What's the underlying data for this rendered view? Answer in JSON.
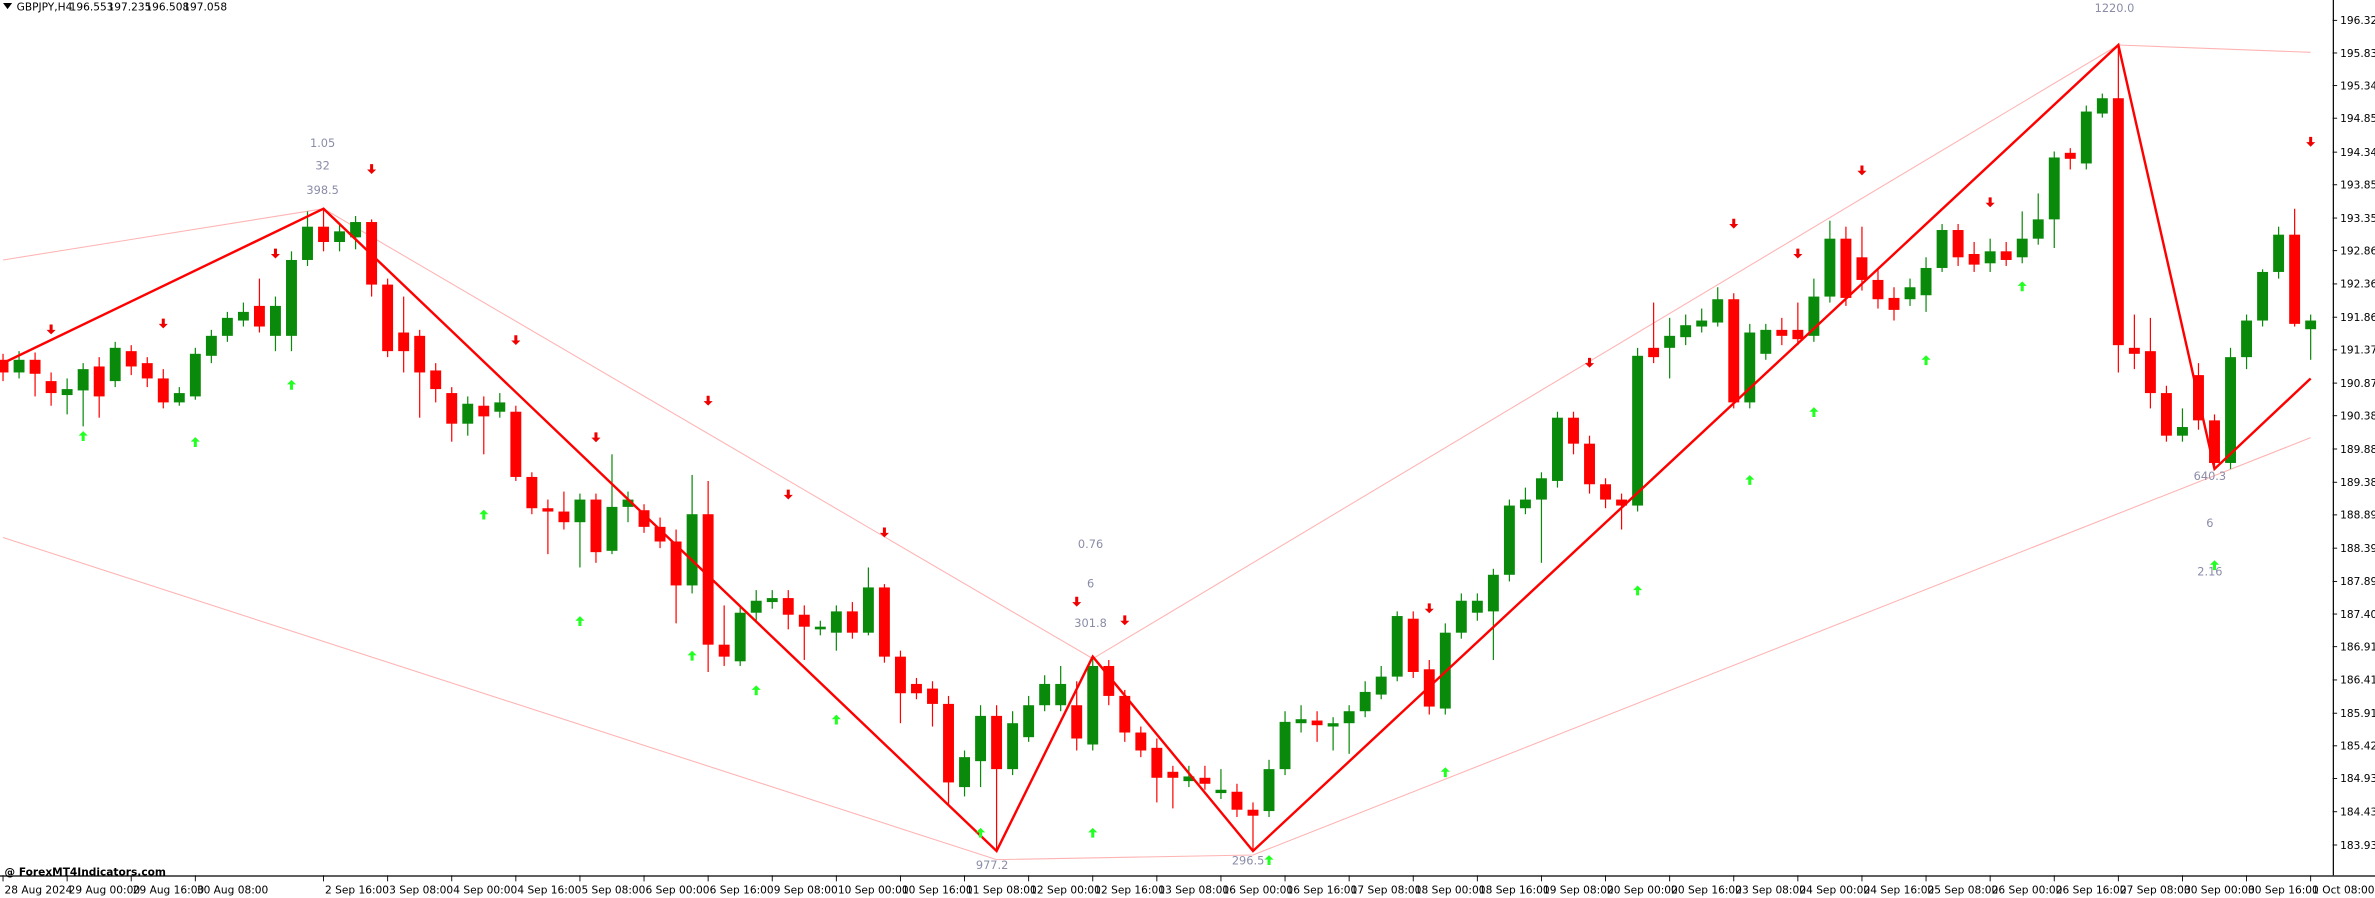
{
  "chart_data": {
    "type": "candlestick",
    "title": "GBPJPY,H4",
    "ohlc": [
      "196.553",
      "197.235",
      "196.508",
      "197.058"
    ],
    "watermark": "@ ForexMT4Indicators.com",
    "up_color": "#0a8a0a",
    "down_color": "#ff0000",
    "zigzag_color": "#ff0000",
    "channel_color": "#ffb3b3",
    "buy_color": "#22ff22",
    "sell_color": "#ee0000",
    "ylim": [
      183.475,
      196.626
    ],
    "yticks": [
      {
        "value": 196.32,
        "label": "196.320"
      },
      {
        "value": 195.83,
        "label": "195.830"
      },
      {
        "value": 195.34,
        "label": "195.340"
      },
      {
        "value": 194.85,
        "label": "194.850"
      },
      {
        "value": 194.34,
        "label": "194.340"
      },
      {
        "value": 193.85,
        "label": "193.850"
      },
      {
        "value": 193.35,
        "label": "193.350"
      },
      {
        "value": 192.86,
        "label": "192.860"
      },
      {
        "value": 192.36,
        "label": "192.360"
      },
      {
        "value": 191.86,
        "label": "191.860"
      },
      {
        "value": 191.37,
        "label": "191.370"
      },
      {
        "value": 190.87,
        "label": "190.870"
      },
      {
        "value": 190.38,
        "label": "190.380"
      },
      {
        "value": 189.88,
        "label": "189.880"
      },
      {
        "value": 189.38,
        "label": "189.380"
      },
      {
        "value": 188.89,
        "label": "188.890"
      },
      {
        "value": 188.39,
        "label": "188.390"
      },
      {
        "value": 187.89,
        "label": "187.890"
      },
      {
        "value": 187.4,
        "label": "187.400"
      },
      {
        "value": 186.91,
        "label": "186.910"
      },
      {
        "value": 186.41,
        "label": "186.410"
      },
      {
        "value": 185.91,
        "label": "185.910"
      },
      {
        "value": 185.42,
        "label": "185.420"
      },
      {
        "value": 184.93,
        "label": "184.930"
      },
      {
        "value": 184.43,
        "label": "184.430"
      },
      {
        "value": 183.93,
        "label": "183.930"
      }
    ],
    "categories": [
      "28 Aug 2024",
      null,
      null,
      null,
      "29 Aug 00:00",
      null,
      null,
      null,
      "29 Aug 16:00",
      null,
      null,
      null,
      "30 Aug 08:00",
      null,
      null,
      null,
      null,
      null,
      null,
      null,
      "2 Sep 16:00",
      null,
      null,
      null,
      "3 Sep 08:00",
      null,
      null,
      null,
      "4 Sep 00:00",
      null,
      null,
      null,
      "4 Sep 16:00",
      null,
      null,
      null,
      "5 Sep 08:00",
      null,
      null,
      null,
      "6 Sep 00:00",
      null,
      null,
      null,
      "6 Sep 16:00",
      null,
      null,
      null,
      "9 Sep 08:00",
      null,
      null,
      null,
      "10 Sep 00:00",
      null,
      null,
      null,
      "10 Sep 16:00",
      null,
      null,
      null,
      "11 Sep 08:00",
      null,
      null,
      null,
      "12 Sep 00:00",
      null,
      null,
      null,
      "12 Sep 16:00",
      null,
      null,
      null,
      "13 Sep 08:00",
      null,
      null,
      null,
      "16 Sep 00:00",
      null,
      null,
      null,
      "16 Sep 16:00",
      null,
      null,
      null,
      "17 Sep 08:00",
      null,
      null,
      null,
      "18 Sep 00:00",
      null,
      null,
      null,
      "18 Sep 16:00",
      null,
      null,
      null,
      "19 Sep 08:00",
      null,
      null,
      null,
      "20 Sep 00:00",
      null,
      null,
      null,
      "20 Sep 16:00",
      null,
      null,
      null,
      "23 Sep 08:00",
      null,
      null,
      null,
      "24 Sep 00:00",
      null,
      null,
      null,
      "24 Sep 16:00",
      null,
      null,
      null,
      "25 Sep 08:00",
      null,
      null,
      null,
      "26 Sep 00:00",
      null,
      null,
      null,
      "26 Sep 16:00",
      null,
      null,
      null,
      "27 Sep 08:00",
      null,
      null,
      null,
      "30 Sep 00:00",
      null,
      null,
      null,
      "30 Sep 16:00",
      null,
      null,
      null,
      "1 Oct 08:00"
    ],
    "candles": [
      [
        191.22,
        191.31,
        190.9,
        191.03
      ],
      [
        191.03,
        191.35,
        190.94,
        191.22
      ],
      [
        191.22,
        191.33,
        190.67,
        191.01
      ],
      [
        190.9,
        191.03,
        190.53,
        190.72
      ],
      [
        190.69,
        190.94,
        190.4,
        190.78
      ],
      [
        190.76,
        191.17,
        190.22,
        191.08
      ],
      [
        191.12,
        191.26,
        190.35,
        190.67
      ],
      [
        190.9,
        191.49,
        190.81,
        191.4
      ],
      [
        191.35,
        191.44,
        190.99,
        191.12
      ],
      [
        191.17,
        191.26,
        190.81,
        190.94
      ],
      [
        190.94,
        191.08,
        190.49,
        190.58
      ],
      [
        190.58,
        190.81,
        190.53,
        190.72
      ],
      [
        190.67,
        191.4,
        190.62,
        191.31
      ],
      [
        191.28,
        191.67,
        191.17,
        191.58
      ],
      [
        191.58,
        191.94,
        191.49,
        191.85
      ],
      [
        191.81,
        192.08,
        191.72,
        191.94
      ],
      [
        192.03,
        192.44,
        191.63,
        191.72
      ],
      [
        191.58,
        192.17,
        191.35,
        192.03
      ],
      [
        191.58,
        192.85,
        191.35,
        192.72
      ],
      [
        192.72,
        193.45,
        192.63,
        193.22
      ],
      [
        193.22,
        193.49,
        192.85,
        192.99
      ],
      [
        192.99,
        193.26,
        192.85,
        193.15
      ],
      [
        193.06,
        193.38,
        192.88,
        193.29
      ],
      [
        193.29,
        193.33,
        192.17,
        192.35
      ],
      [
        192.35,
        192.44,
        191.26,
        191.35
      ],
      [
        191.63,
        192.17,
        191.03,
        191.35
      ],
      [
        191.58,
        191.67,
        190.35,
        191.03
      ],
      [
        191.06,
        191.17,
        190.58,
        190.78
      ],
      [
        190.72,
        190.81,
        189.99,
        190.26
      ],
      [
        190.26,
        190.67,
        190.08,
        190.56
      ],
      [
        190.53,
        190.67,
        189.8,
        190.37
      ],
      [
        190.44,
        190.72,
        190.35,
        190.58
      ],
      [
        190.44,
        190.53,
        189.4,
        189.46
      ],
      [
        189.46,
        189.53,
        188.9,
        188.99
      ],
      [
        188.99,
        189.12,
        188.3,
        188.94
      ],
      [
        188.94,
        189.24,
        188.67,
        188.78
      ],
      [
        188.78,
        189.21,
        188.1,
        189.12
      ],
      [
        189.12,
        189.21,
        188.17,
        188.33
      ],
      [
        188.35,
        189.8,
        188.3,
        189.01
      ],
      [
        189.01,
        189.24,
        188.78,
        189.12
      ],
      [
        188.96,
        189.05,
        188.62,
        188.71
      ],
      [
        188.71,
        188.85,
        188.39,
        188.49
      ],
      [
        188.49,
        188.67,
        187.26,
        187.83
      ],
      [
        187.83,
        189.49,
        187.71,
        188.9
      ],
      [
        188.9,
        189.4,
        186.53,
        186.94
      ],
      [
        186.94,
        187.53,
        186.62,
        186.76
      ],
      [
        186.69,
        187.53,
        186.62,
        187.42
      ],
      [
        187.42,
        187.76,
        187.3,
        187.6
      ],
      [
        187.58,
        187.76,
        187.48,
        187.64
      ],
      [
        187.64,
        187.76,
        187.17,
        187.39
      ],
      [
        187.39,
        187.53,
        186.71,
        187.21
      ],
      [
        187.17,
        187.3,
        187.08,
        187.21
      ],
      [
        187.12,
        187.53,
        186.85,
        187.44
      ],
      [
        187.44,
        187.58,
        187.03,
        187.12
      ],
      [
        187.12,
        188.1,
        187.08,
        187.8
      ],
      [
        187.8,
        187.85,
        186.67,
        186.76
      ],
      [
        186.76,
        186.85,
        185.76,
        186.21
      ],
      [
        186.35,
        186.44,
        186.12,
        186.21
      ],
      [
        186.28,
        186.39,
        185.71,
        186.05
      ],
      [
        186.05,
        186.17,
        184.53,
        184.87
      ],
      [
        184.8,
        185.35,
        184.66,
        185.25
      ],
      [
        185.19,
        186.03,
        184.8,
        185.87
      ],
      [
        185.87,
        186.03,
        183.84,
        185.07
      ],
      [
        185.07,
        185.94,
        184.98,
        185.76
      ],
      [
        185.55,
        186.17,
        185.48,
        186.03
      ],
      [
        186.03,
        186.48,
        185.94,
        186.35
      ],
      [
        186.03,
        186.62,
        185.94,
        186.35
      ],
      [
        186.03,
        186.39,
        185.35,
        185.53
      ],
      [
        185.44,
        186.76,
        185.35,
        186.62
      ],
      [
        186.62,
        186.71,
        186.03,
        186.17
      ],
      [
        186.17,
        186.26,
        185.48,
        185.62
      ],
      [
        185.62,
        185.71,
        185.25,
        185.35
      ],
      [
        185.39,
        185.53,
        184.57,
        184.94
      ],
      [
        185.03,
        185.12,
        184.48,
        184.94
      ],
      [
        184.89,
        185.12,
        184.8,
        184.96
      ],
      [
        184.94,
        185.12,
        184.76,
        184.85
      ],
      [
        184.71,
        185.07,
        184.62,
        184.76
      ],
      [
        184.73,
        184.85,
        184.35,
        184.46
      ],
      [
        184.46,
        184.57,
        183.84,
        184.37
      ],
      [
        184.44,
        185.21,
        184.35,
        185.07
      ],
      [
        185.07,
        185.94,
        184.98,
        185.78
      ],
      [
        185.76,
        186.03,
        185.62,
        185.82
      ],
      [
        185.8,
        185.94,
        185.48,
        185.73
      ],
      [
        185.71,
        185.85,
        185.35,
        185.76
      ],
      [
        185.76,
        186.03,
        185.3,
        185.94
      ],
      [
        185.94,
        186.39,
        185.85,
        186.23
      ],
      [
        186.19,
        186.62,
        186.12,
        186.46
      ],
      [
        186.46,
        187.44,
        186.39,
        187.37
      ],
      [
        187.33,
        187.44,
        186.44,
        186.53
      ],
      [
        186.57,
        186.71,
        185.89,
        186.01
      ],
      [
        185.98,
        187.26,
        185.89,
        187.12
      ],
      [
        187.12,
        187.71,
        187.03,
        187.6
      ],
      [
        187.42,
        187.71,
        187.3,
        187.6
      ],
      [
        187.44,
        188.08,
        186.71,
        187.99
      ],
      [
        187.99,
        189.12,
        187.89,
        189.03
      ],
      [
        188.99,
        189.3,
        188.9,
        189.12
      ],
      [
        189.12,
        189.53,
        188.17,
        189.44
      ],
      [
        189.4,
        190.44,
        189.3,
        190.35
      ],
      [
        190.35,
        190.44,
        189.8,
        189.96
      ],
      [
        189.96,
        190.08,
        189.21,
        189.35
      ],
      [
        189.35,
        189.44,
        188.99,
        189.12
      ],
      [
        189.12,
        189.21,
        188.67,
        189.03
      ],
      [
        189.03,
        191.4,
        188.94,
        191.28
      ],
      [
        191.4,
        192.08,
        191.17,
        191.26
      ],
      [
        191.4,
        191.85,
        190.94,
        191.58
      ],
      [
        191.56,
        191.9,
        191.44,
        191.74
      ],
      [
        191.72,
        191.99,
        191.63,
        191.81
      ],
      [
        191.78,
        192.31,
        191.72,
        192.13
      ],
      [
        192.13,
        192.22,
        190.49,
        190.58
      ],
      [
        190.58,
        191.76,
        190.49,
        191.63
      ],
      [
        191.31,
        191.76,
        191.22,
        191.67
      ],
      [
        191.67,
        191.85,
        191.44,
        191.58
      ],
      [
        191.67,
        192.08,
        191.44,
        191.53
      ],
      [
        191.58,
        192.44,
        191.49,
        192.17
      ],
      [
        192.17,
        193.31,
        192.08,
        193.04
      ],
      [
        193.04,
        193.22,
        192.03,
        192.15
      ],
      [
        192.76,
        193.22,
        192.26,
        192.42
      ],
      [
        192.42,
        192.58,
        191.99,
        192.13
      ],
      [
        192.15,
        192.31,
        191.81,
        191.97
      ],
      [
        192.13,
        192.44,
        192.03,
        192.31
      ],
      [
        192.19,
        192.76,
        191.94,
        192.6
      ],
      [
        192.6,
        193.26,
        192.54,
        193.17
      ],
      [
        193.17,
        193.26,
        192.63,
        192.76
      ],
      [
        192.81,
        192.99,
        192.54,
        192.65
      ],
      [
        192.67,
        193.04,
        192.54,
        192.85
      ],
      [
        192.85,
        192.99,
        192.63,
        192.72
      ],
      [
        192.76,
        193.45,
        192.67,
        193.04
      ],
      [
        193.04,
        193.72,
        192.95,
        193.33
      ],
      [
        193.33,
        194.35,
        192.9,
        194.26
      ],
      [
        194.33,
        194.4,
        194.08,
        194.24
      ],
      [
        194.17,
        195.04,
        194.08,
        194.95
      ],
      [
        194.92,
        195.22,
        194.86,
        195.15
      ],
      [
        195.15,
        195.95,
        191.03,
        191.44
      ],
      [
        191.4,
        191.9,
        191.08,
        191.31
      ],
      [
        191.35,
        191.85,
        190.49,
        190.72
      ],
      [
        190.72,
        190.83,
        189.99,
        190.08
      ],
      [
        190.08,
        190.49,
        189.99,
        190.21
      ],
      [
        190.99,
        191.17,
        190.17,
        190.31
      ],
      [
        190.31,
        190.4,
        189.58,
        189.67
      ],
      [
        189.67,
        191.4,
        189.58,
        191.26
      ],
      [
        191.26,
        191.9,
        191.08,
        191.81
      ],
      [
        191.81,
        192.58,
        191.72,
        192.54
      ],
      [
        192.54,
        193.22,
        192.44,
        193.1
      ],
      [
        193.1,
        193.49,
        191.72,
        191.76
      ],
      [
        191.68,
        191.9,
        191.22,
        191.81
      ]
    ],
    "zigzag": {
      "x": [
        0,
        20,
        62,
        68,
        78,
        132,
        138,
        144
      ],
      "values": [
        191.17,
        193.49,
        183.84,
        186.76,
        183.84,
        195.95,
        189.58,
        190.94
      ]
    },
    "channels": [
      {
        "x": [
          0,
          20,
          68,
          132,
          144
        ],
        "values": [
          192.72,
          193.49,
          186.73,
          195.95,
          195.84
        ]
      },
      {
        "x": [
          0,
          62,
          78,
          144
        ],
        "values": [
          188.55,
          183.71,
          183.78,
          190.05
        ]
      }
    ],
    "sell_signals": {
      "x": [
        3,
        10,
        17,
        23,
        32,
        37,
        44,
        49,
        55,
        67,
        70,
        89,
        99,
        108,
        112,
        116,
        124,
        144
      ],
      "values": [
        191.67,
        191.76,
        192.81,
        194.08,
        191.51,
        190.05,
        190.6,
        189.19,
        188.62,
        187.58,
        187.3,
        187.48,
        191.17,
        193.26,
        192.81,
        194.06,
        193.58,
        194.49
      ]
    },
    "buy_signals": {
      "x": [
        5,
        12,
        18,
        30,
        36,
        43,
        47,
        52,
        61,
        68,
        79,
        90,
        102,
        109,
        113,
        120,
        126,
        138
      ],
      "values": [
        190.08,
        189.99,
        190.85,
        188.9,
        187.3,
        186.78,
        186.26,
        185.82,
        184.12,
        184.12,
        183.71,
        185.03,
        187.76,
        189.42,
        190.44,
        191.22,
        192.33,
        188.14
      ]
    },
    "annotations": [
      "1.05",
      "32",
      "398.5",
      "0.76",
      "6",
      "301.8",
      "977.2",
      "296.5",
      "1220.0",
      "640.3",
      "6",
      "2.16"
    ]
  }
}
